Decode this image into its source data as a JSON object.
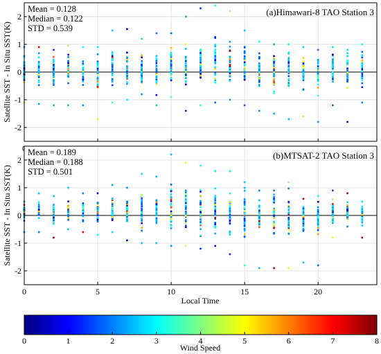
{
  "chart_data": [
    {
      "type": "scatter",
      "title": "(a)Himawari-8 TAO Station 3",
      "stats": [
        "Mean = 0.128",
        "Median = 0.122",
        "STD = 0.539"
      ],
      "xlabel": "",
      "ylabel": "Satellite SST - In Situ SST(K)",
      "xlim": [
        0,
        24
      ],
      "ylim": [
        -2.5,
        2.5
      ],
      "xticks": [
        0,
        5,
        10,
        15,
        20
      ],
      "yticks": [
        -2,
        -1,
        0,
        1,
        2
      ],
      "grid": true,
      "reference_line_y": 0,
      "color_variable": "Wind Speed",
      "hours": [
        0,
        1,
        2,
        3,
        4,
        5,
        6,
        7,
        8,
        9,
        10,
        11,
        12,
        13,
        14,
        15,
        16,
        17,
        18,
        19,
        20,
        21,
        22,
        23
      ],
      "per_hour_range": [
        [
          -1.1,
          0.9
        ],
        [
          -1.15,
          0.9
        ],
        [
          -1.2,
          0.8
        ],
        [
          -1.2,
          0.95
        ],
        [
          -1.2,
          0.9
        ],
        [
          -1.7,
          0.9
        ],
        [
          -1.1,
          1.5
        ],
        [
          -1.0,
          1.55
        ],
        [
          -0.8,
          1.2
        ],
        [
          -1.2,
          1.4
        ],
        [
          -0.9,
          1.4
        ],
        [
          -1.4,
          2.0
        ],
        [
          -1.2,
          2.3
        ],
        [
          -1.1,
          2.4
        ],
        [
          -1.0,
          2.2
        ],
        [
          -1.2,
          1.5
        ],
        [
          -1.4,
          1.1
        ],
        [
          -1.5,
          1.0
        ],
        [
          -1.7,
          1.0
        ],
        [
          -1.6,
          0.9
        ],
        [
          -1.8,
          0.8
        ],
        [
          -1.2,
          0.9
        ],
        [
          -1.8,
          0.8
        ],
        [
          -1.1,
          1.0
        ]
      ]
    },
    {
      "type": "scatter",
      "title": "(b)MTSAT-2 TAO Station 3",
      "stats": [
        "Mean = 0.189",
        "Median = 0.188",
        "STD = 0.501"
      ],
      "xlabel": "Local Time",
      "ylabel": "Satellite SST - In Situ SST(K)",
      "xlim": [
        0,
        24
      ],
      "ylim": [
        -2.5,
        2.5
      ],
      "xticks": [
        0,
        5,
        10,
        15,
        20
      ],
      "yticks": [
        -2,
        -1,
        0,
        1,
        2
      ],
      "grid": true,
      "reference_line_y": 0,
      "color_variable": "Wind Speed",
      "hours": [
        0,
        1,
        2,
        3,
        4,
        5,
        6,
        7,
        8,
        9,
        10,
        11,
        12,
        13,
        14,
        15,
        16,
        17,
        18,
        19,
        20,
        21,
        22,
        23
      ],
      "per_hour_range": [
        [
          -0.6,
          0.5
        ],
        [
          -0.6,
          0.8
        ],
        [
          -0.8,
          0.7
        ],
        [
          -0.5,
          1.0
        ],
        [
          -0.6,
          0.8
        ],
        [
          -0.7,
          0.8
        ],
        [
          -0.6,
          1.1
        ],
        [
          -0.9,
          1.0
        ],
        [
          -1.0,
          1.5
        ],
        [
          -1.0,
          1.4
        ],
        [
          -1.1,
          2.2
        ],
        [
          -1.1,
          1.9
        ],
        [
          -1.2,
          1.8
        ],
        [
          -1.1,
          1.6
        ],
        [
          -1.4,
          1.6
        ],
        [
          -1.8,
          1.2
        ],
        [
          -1.9,
          0.9
        ],
        [
          -1.9,
          0.9
        ],
        [
          -1.9,
          1.2
        ],
        [
          -1.7,
          0.6
        ],
        [
          -1.8,
          0.7
        ],
        [
          -0.8,
          0.9
        ],
        [
          -0.4,
          0.8
        ],
        [
          -0.8,
          0.5
        ]
      ]
    }
  ],
  "colorbar": {
    "label": "Wind Speed",
    "min": 0,
    "max": 8,
    "ticks": [
      0,
      1,
      2,
      3,
      4,
      5,
      6,
      7,
      8
    ],
    "colormap": "jet",
    "colors": [
      "#00007f",
      "#0000ff",
      "#007fff",
      "#00ffff",
      "#7fff7f",
      "#ffff00",
      "#ff7f00",
      "#ff0000",
      "#7f0000"
    ]
  }
}
